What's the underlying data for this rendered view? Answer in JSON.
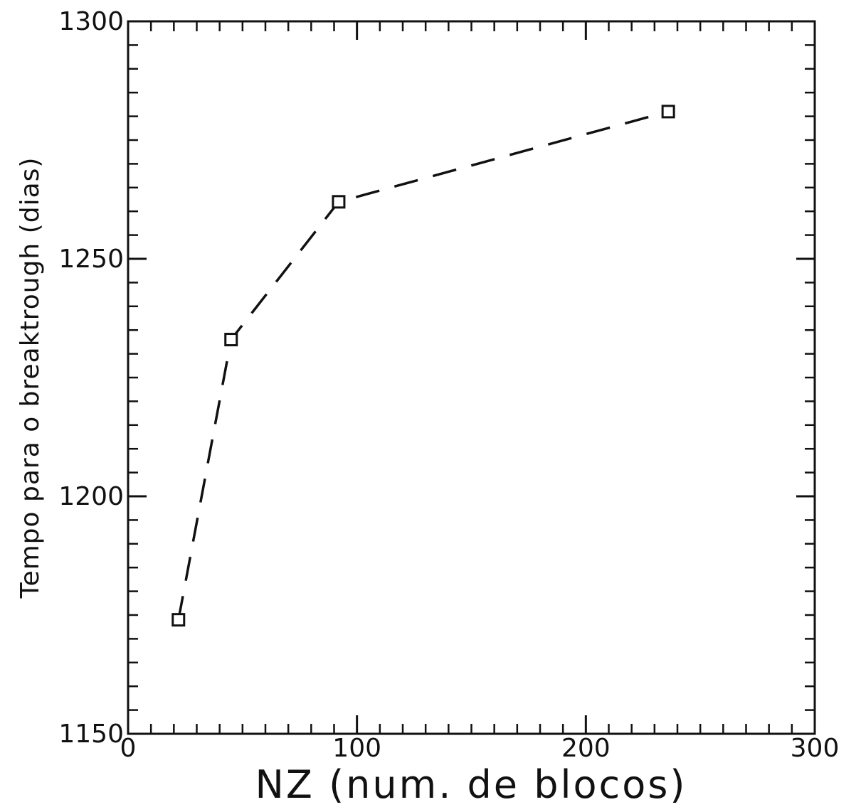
{
  "chart_data": {
    "type": "line",
    "title": "",
    "xlabel": "NZ (num. de blocos)",
    "ylabel": "Tempo para o breaktrough (dias)",
    "xlim": [
      0,
      300
    ],
    "ylim": [
      1150,
      1300
    ],
    "xticks": [
      0,
      100,
      200,
      300
    ],
    "xtick_labels": [
      "0",
      "100",
      "200",
      "300"
    ],
    "yticks": [
      1150,
      1200,
      1250,
      1300
    ],
    "ytick_labels": [
      "1150",
      "1200",
      "1250",
      "1300"
    ],
    "x_minor_step": 10,
    "y_minor_step": 5,
    "grid": false,
    "legend": "none",
    "line_style": "dashed",
    "marker": "square",
    "color": "#111111",
    "series": [
      {
        "x": [
          22,
          45,
          92,
          236
        ],
        "y": [
          1174,
          1233,
          1262,
          1281
        ]
      }
    ]
  }
}
